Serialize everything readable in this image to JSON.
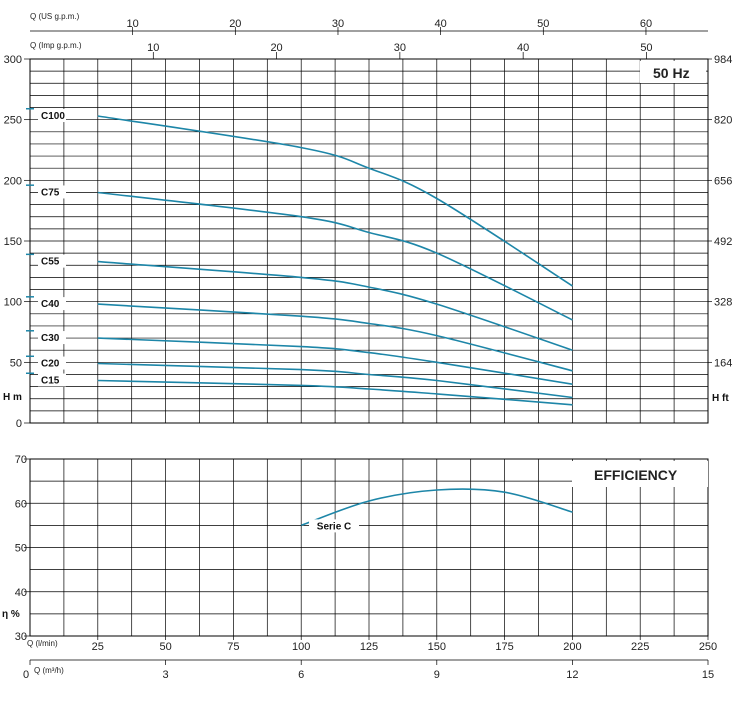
{
  "chart_data": [
    {
      "type": "line",
      "title": "50 Hz",
      "ylabel": "H m",
      "ylabel_right": "H ft",
      "ylim": [
        0,
        300
      ],
      "y_ticks": [
        0,
        50,
        100,
        150,
        200,
        250,
        300
      ],
      "y_right_ticks": [
        "164",
        "328",
        "492",
        "656",
        "820",
        "984"
      ],
      "top_axis_us": {
        "label": "Q (US g.p.m.)",
        "ticks": [
          "10",
          "20",
          "30",
          "40",
          "50",
          "60"
        ]
      },
      "top_axis_imp": {
        "label": "Q (Imp g.p.m.)",
        "ticks": [
          "10",
          "20",
          "30",
          "40",
          "50"
        ]
      },
      "x_units": "l/min",
      "series": [
        {
          "name": "C100",
          "x": [
            25,
            100,
            125,
            150,
            200
          ],
          "y": [
            253,
            227,
            210,
            185,
            113
          ]
        },
        {
          "name": "C75",
          "x": [
            25,
            100,
            125,
            150,
            200
          ],
          "y": [
            190,
            170,
            157,
            140,
            85
          ]
        },
        {
          "name": "C55",
          "x": [
            25,
            100,
            125,
            150,
            200
          ],
          "y": [
            133,
            120,
            112,
            98,
            60
          ]
        },
        {
          "name": "C40",
          "x": [
            25,
            100,
            125,
            150,
            200
          ],
          "y": [
            98,
            88,
            82,
            72,
            43
          ]
        },
        {
          "name": "C30",
          "x": [
            25,
            100,
            125,
            150,
            200
          ],
          "y": [
            70,
            63,
            58,
            50,
            32
          ]
        },
        {
          "name": "C20",
          "x": [
            25,
            100,
            125,
            150,
            200
          ],
          "y": [
            49,
            44,
            40,
            35,
            21
          ]
        },
        {
          "name": "C15",
          "x": [
            25,
            100,
            125,
            150,
            200
          ],
          "y": [
            35,
            31,
            28,
            24,
            15
          ]
        }
      ]
    },
    {
      "type": "line",
      "title": "EFFICIENCY",
      "ylabel": "η %",
      "ylim": [
        30,
        70
      ],
      "y_ticks": [
        30,
        40,
        50,
        60,
        70
      ],
      "xlim": [
        0,
        250
      ],
      "x_ticks": [
        25,
        50,
        75,
        100,
        125,
        150,
        175,
        200,
        225,
        250
      ],
      "xlabel": "Q (l/min)",
      "x2label": "Q (m³/h)",
      "x2_ticks": [
        "0",
        "3",
        "6",
        "9",
        "12",
        "15"
      ],
      "series": [
        {
          "name": "Serie C",
          "x": [
            100,
            125,
            150,
            175,
            200
          ],
          "y": [
            55,
            60.5,
            63,
            62.5,
            58
          ]
        }
      ]
    }
  ]
}
